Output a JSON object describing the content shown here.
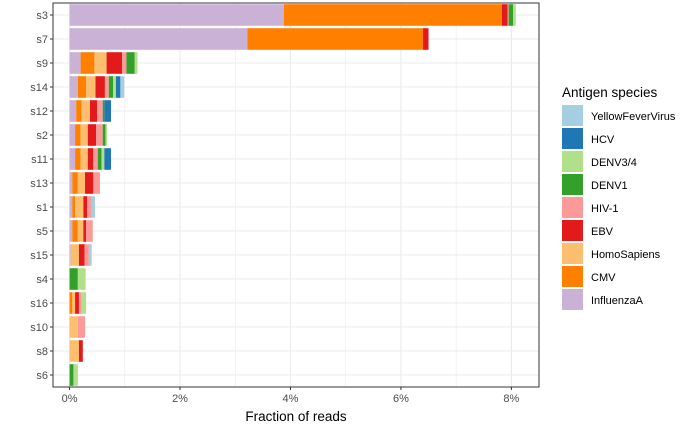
{
  "chart_data": {
    "type": "bar",
    "orientation": "horizontal",
    "stacked": true,
    "xlabel": "Fraction of reads",
    "ylabel": "",
    "xlim": [
      -0.3,
      8.5
    ],
    "x_ticks": [
      0,
      2,
      4,
      6,
      8
    ],
    "x_tick_labels": [
      "0%",
      "2%",
      "4%",
      "6%",
      "8%"
    ],
    "grid": true,
    "legend_position": "right",
    "legend_title": "Antigen species",
    "categories": [
      "s3",
      "s7",
      "s9",
      "s14",
      "s12",
      "s2",
      "s11",
      "s13",
      "s1",
      "s5",
      "s15",
      "s4",
      "s16",
      "s10",
      "s8",
      "s6"
    ],
    "series": [
      {
        "name": "InfluenzaA",
        "color": "#cab2d6",
        "values": [
          3.88,
          3.22,
          0.2,
          0.15,
          0.12,
          0.1,
          0.1,
          0.05,
          0.05,
          0.05,
          0.02,
          0.0,
          0.0,
          0.0,
          0.0,
          0.0
        ]
      },
      {
        "name": "CMV",
        "color": "#ff7f00",
        "values": [
          3.95,
          3.18,
          0.25,
          0.15,
          0.1,
          0.1,
          0.1,
          0.1,
          0.05,
          0.1,
          0.0,
          0.0,
          0.05,
          0.0,
          0.0,
          0.0
        ]
      },
      {
        "name": "HomoSapiens",
        "color": "#fdbf6f",
        "values": [
          0.0,
          0.0,
          0.22,
          0.17,
          0.15,
          0.13,
          0.13,
          0.13,
          0.15,
          0.1,
          0.15,
          0.0,
          0.05,
          0.15,
          0.17,
          0.0
        ]
      },
      {
        "name": "EBV",
        "color": "#e31a1c",
        "values": [
          0.1,
          0.1,
          0.28,
          0.17,
          0.13,
          0.15,
          0.1,
          0.15,
          0.07,
          0.05,
          0.1,
          0.0,
          0.07,
          0.0,
          0.07,
          0.0
        ]
      },
      {
        "name": "HIV-1",
        "color": "#fb9a99",
        "values": [
          0.02,
          0.0,
          0.08,
          0.07,
          0.1,
          0.12,
          0.08,
          0.12,
          0.08,
          0.12,
          0.08,
          0.0,
          0.05,
          0.13,
          0.0,
          0.0
        ]
      },
      {
        "name": "DENV1",
        "color": "#33a02c",
        "values": [
          0.08,
          0.0,
          0.15,
          0.08,
          0.03,
          0.05,
          0.07,
          0.0,
          0.0,
          0.0,
          0.0,
          0.15,
          0.0,
          0.0,
          0.0,
          0.07
        ]
      },
      {
        "name": "DENV3/4",
        "color": "#b2df8a",
        "values": [
          0.05,
          0.0,
          0.05,
          0.05,
          0.0,
          0.03,
          0.05,
          0.0,
          0.0,
          0.0,
          0.0,
          0.14,
          0.08,
          0.0,
          0.0,
          0.08
        ]
      },
      {
        "name": "HCV",
        "color": "#1f78b4",
        "values": [
          0.0,
          0.0,
          0.0,
          0.08,
          0.12,
          0.0,
          0.12,
          0.0,
          0.0,
          0.0,
          0.0,
          0.0,
          0.0,
          0.0,
          0.0,
          0.0
        ]
      },
      {
        "name": "YellowFeverVirus",
        "color": "#a6cee3",
        "values": [
          0.0,
          0.0,
          0.0,
          0.07,
          0.0,
          0.0,
          0.0,
          0.0,
          0.06,
          0.0,
          0.05,
          0.0,
          0.0,
          0.0,
          0.0,
          0.0
        ]
      }
    ],
    "legend_order": [
      "YellowFeverVirus",
      "HCV",
      "DENV3/4",
      "DENV1",
      "HIV-1",
      "EBV",
      "HomoSapiens",
      "CMV",
      "InfluenzaA"
    ]
  }
}
